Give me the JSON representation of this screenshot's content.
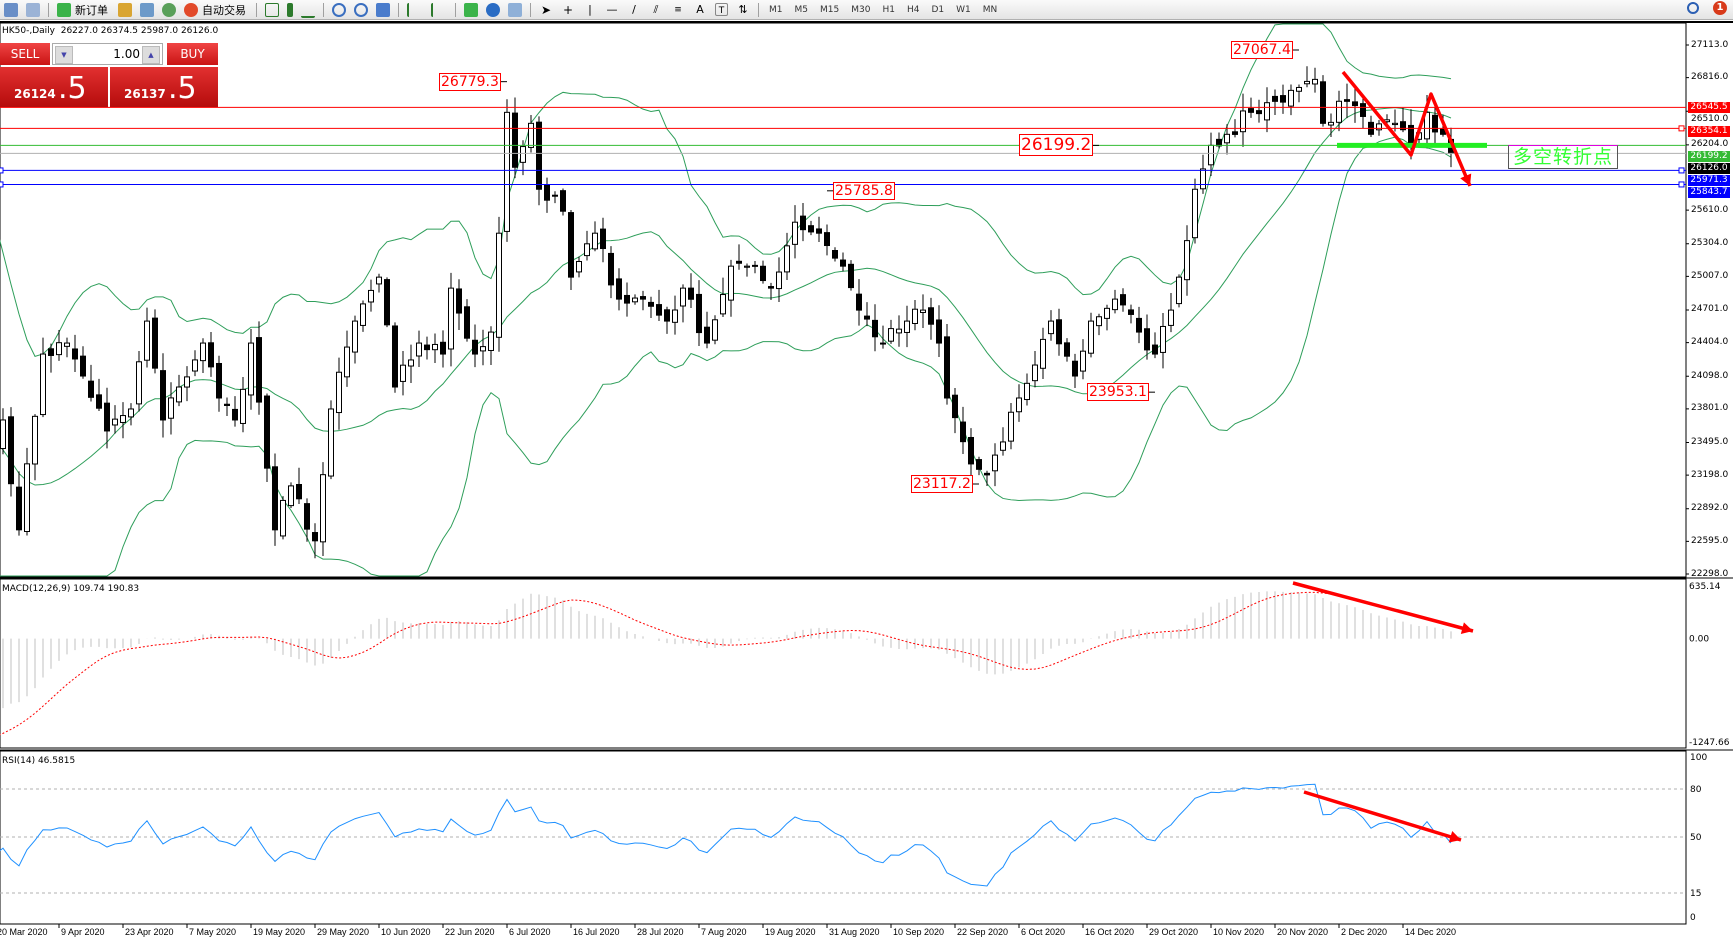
{
  "toolbar": {
    "new_order": "新订单",
    "auto_trading": "自动交易",
    "timeframes": [
      "M1",
      "M5",
      "M15",
      "M30",
      "H1",
      "H4",
      "D1",
      "W1",
      "MN"
    ],
    "notification_count": "1"
  },
  "window": {
    "symbol_info": "HK50-,Daily  26227.0 26374.5 25987.0 26126.0"
  },
  "trade_panel": {
    "sell_label": "SELL",
    "buy_label": "BUY",
    "lot": "1.00",
    "sell_price_main": "26124",
    "sell_price_frac": ".5",
    "buy_price_main": "26137",
    "buy_price_frac": ".5"
  },
  "annotation_text": "多空转折点",
  "chart_data": [
    {
      "type": "candlestick",
      "symbol": "HK50-",
      "timeframe": "Daily",
      "ylim": [
        22298.0,
        27113.0
      ],
      "price_ticks": [
        "27113.0",
        "26816.0",
        "26510.0",
        "26204.0",
        "25610.0",
        "25304.0",
        "25007.0",
        "24701.0",
        "24404.0",
        "24098.0",
        "23801.0",
        "23495.0",
        "23198.0",
        "22892.0",
        "22595.0",
        "22298.0"
      ],
      "date_labels": [
        "20 Mar 2020",
        "9 Apr 2020",
        "23 Apr 2020",
        "7 May 2020",
        "19 May 2020",
        "29 May 2020",
        "10 Jun 2020",
        "22 Jun 2020",
        "6 Jul 2020",
        "16 Jul 2020",
        "28 Jul 2020",
        "7 Aug 2020",
        "19 Aug 2020",
        "31 Aug 2020",
        "10 Sep 2020",
        "22 Sep 2020",
        "6 Oct 2020",
        "16 Oct 2020",
        "29 Oct 2020",
        "10 Nov 2020",
        "20 Nov 2020",
        "2 Dec 2020",
        "14 Dec 2020"
      ],
      "approx_close_path_session_price": [
        [
          0,
          23500
        ],
        [
          1,
          23700
        ],
        [
          3,
          22700
        ],
        [
          6,
          24300
        ],
        [
          9,
          24400
        ],
        [
          11,
          24100
        ],
        [
          14,
          23600
        ],
        [
          17,
          23800
        ],
        [
          19,
          24600
        ],
        [
          21,
          23700
        ],
        [
          23,
          24000
        ],
        [
          26,
          24400
        ],
        [
          28,
          23900
        ],
        [
          30,
          23700
        ],
        [
          32,
          24400
        ],
        [
          35,
          22700
        ],
        [
          37,
          23100
        ],
        [
          40,
          22600
        ],
        [
          42,
          23800
        ],
        [
          45,
          24600
        ],
        [
          48,
          25000
        ],
        [
          50,
          24000
        ],
        [
          53,
          24400
        ],
        [
          56,
          24300
        ],
        [
          57,
          24900
        ],
        [
          60,
          24300
        ],
        [
          62,
          24500
        ],
        [
          63,
          25400
        ],
        [
          64,
          26500
        ],
        [
          65,
          26000
        ],
        [
          67,
          26400
        ],
        [
          68,
          25800
        ],
        [
          71,
          25600
        ],
        [
          72,
          25000
        ],
        [
          75,
          25400
        ],
        [
          78,
          24800
        ],
        [
          81,
          24800
        ],
        [
          84,
          24600
        ],
        [
          86,
          24900
        ],
        [
          89,
          24400
        ],
        [
          92,
          25100
        ],
        [
          94,
          25100
        ],
        [
          97,
          24900
        ],
        [
          100,
          25500
        ],
        [
          103,
          25400
        ],
        [
          106,
          25100
        ],
        [
          108,
          24700
        ],
        [
          111,
          24400
        ],
        [
          114,
          24600
        ],
        [
          116,
          24700
        ],
        [
          118,
          24400
        ],
        [
          119,
          23900
        ],
        [
          122,
          23300
        ],
        [
          124,
          23200
        ],
        [
          126,
          23500
        ],
        [
          128,
          23900
        ],
        [
          130,
          24200
        ],
        [
          132,
          24600
        ],
        [
          135,
          24100
        ],
        [
          137,
          24600
        ],
        [
          140,
          24800
        ],
        [
          143,
          24500
        ],
        [
          145,
          24300
        ],
        [
          147,
          24700
        ],
        [
          148,
          25000
        ],
        [
          150,
          25800
        ],
        [
          152,
          26200
        ],
        [
          154,
          26300
        ],
        [
          157,
          26500
        ],
        [
          160,
          26600
        ],
        [
          162,
          26700
        ],
        [
          165,
          26800
        ],
        [
          166,
          26400
        ],
        [
          169,
          26600
        ],
        [
          172,
          26300
        ],
        [
          175,
          26400
        ],
        [
          177,
          26200
        ],
        [
          179,
          26500
        ],
        [
          181,
          26300
        ],
        [
          182,
          26126
        ]
      ],
      "indicators": [
        "Bollinger Bands (20, 2)"
      ],
      "levels": [
        {
          "value": "26545.5",
          "color": "#ff0000"
        },
        {
          "value": "26354.1",
          "color": "#ff0000"
        },
        {
          "value": "26199.2",
          "color": "#33bb33"
        },
        {
          "value": "26126.0",
          "color": "#000000"
        },
        {
          "value": "25971.3",
          "color": "#0000ff"
        },
        {
          "value": "25843.7",
          "color": "#0000ff"
        }
      ],
      "price_labels": [
        {
          "text": "26779.3",
          "session": 64,
          "side": "left"
        },
        {
          "text": "27067.4",
          "session": 163,
          "side": "left"
        },
        {
          "text": "25785.8",
          "session": 104,
          "side": "right"
        },
        {
          "text": "26199.2",
          "session": 138,
          "side": "left",
          "big": true
        },
        {
          "text": "23953.1",
          "session": 145,
          "side": "left"
        },
        {
          "text": "23117.2",
          "session": 123,
          "side": "left"
        }
      ]
    },
    {
      "type": "histogram+line",
      "title": "MACD(12,26,9) 109.74 190.83",
      "ylim": [
        -1247.66,
        635.14
      ],
      "ticks": [
        "635.14",
        "0.00",
        "-1247.66"
      ],
      "signal_color": "#ff0000",
      "histogram_color": "#c0c0c0"
    },
    {
      "type": "line",
      "title": "RSI(14) 46.5815",
      "ylim": [
        0,
        100
      ],
      "ticks": [
        "100",
        "80",
        "50",
        "15",
        "0"
      ],
      "levels": [
        80,
        50,
        15
      ],
      "color": "#1e90ff"
    }
  ]
}
